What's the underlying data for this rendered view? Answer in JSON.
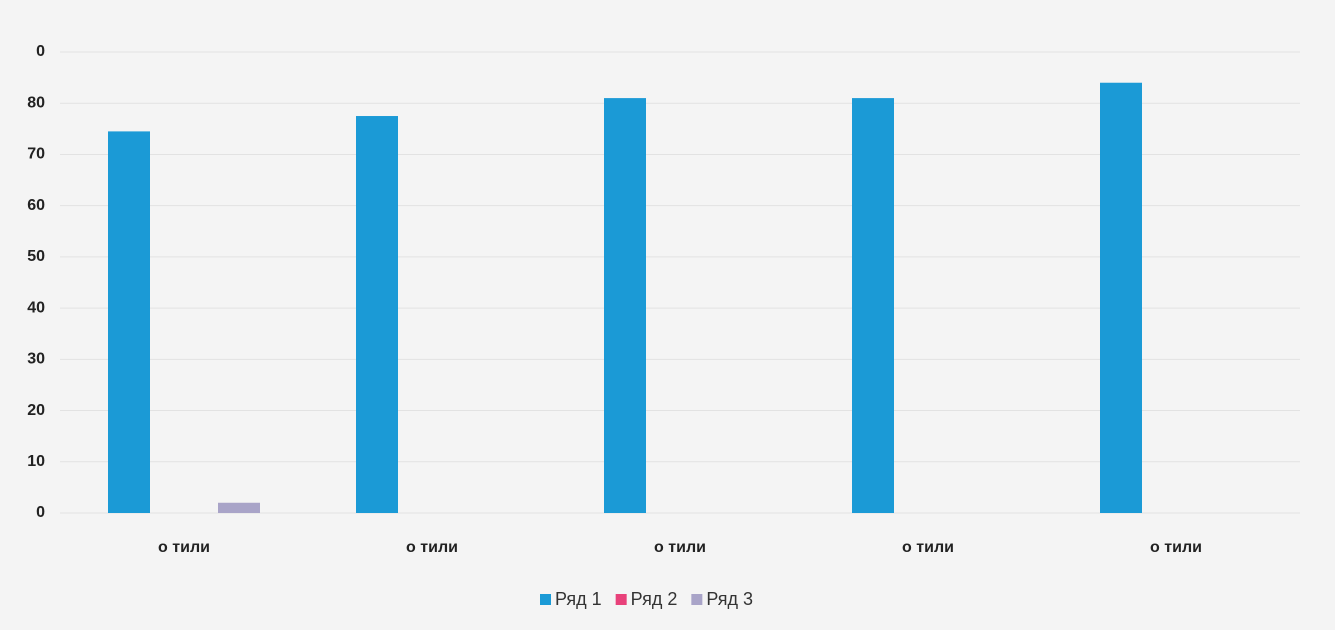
{
  "chart_data": {
    "type": "bar",
    "categories": [
      "о тили",
      "о тили",
      "о тили",
      "о тили",
      "о тили"
    ],
    "series": [
      {
        "name": "Ряд 1",
        "color": "#1b9ad6",
        "values": [
          74.5,
          77.5,
          81,
          81,
          84
        ]
      },
      {
        "name": "Ряд 2",
        "color": "#e8417a",
        "values": [
          0,
          0,
          0,
          0,
          0
        ]
      },
      {
        "name": "Ряд 3",
        "color": "#a9a4c8",
        "values": [
          2,
          0,
          0,
          0,
          0
        ]
      }
    ],
    "ylim": [
      0,
      90
    ],
    "yticks": [
      0,
      10,
      20,
      30,
      40,
      50,
      60,
      70,
      80,
      {
        "value": 90,
        "label": "0"
      }
    ],
    "grid": true,
    "legend": "bottom"
  }
}
